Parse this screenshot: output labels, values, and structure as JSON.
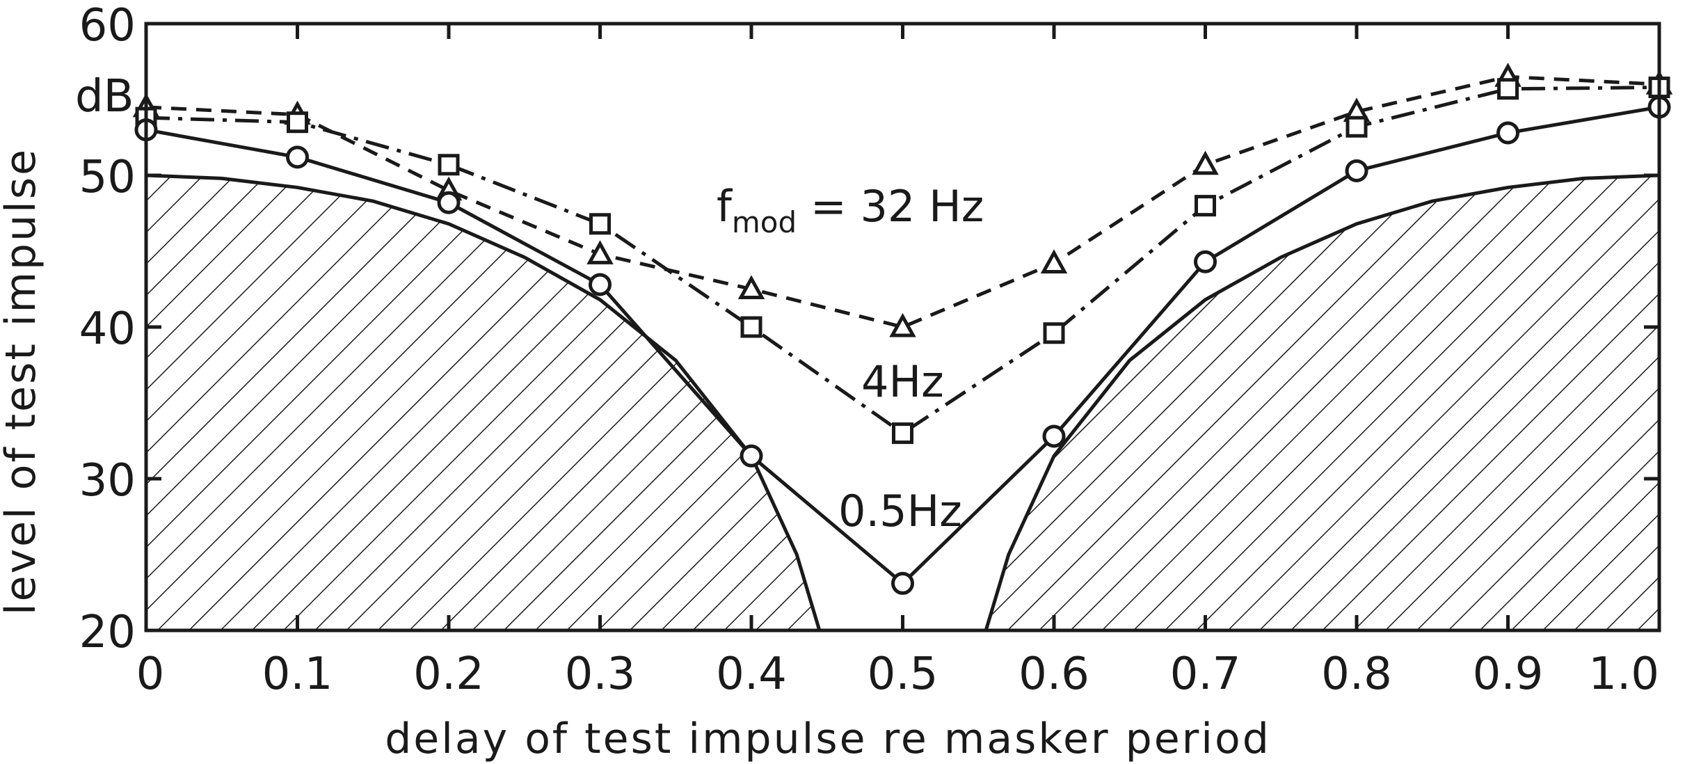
{
  "chart_data": {
    "type": "line",
    "title": "",
    "xlabel": "delay of test impulse re masker period",
    "ylabel": "level of test impulse",
    "y_unit": "dB",
    "xlim": [
      0,
      1.0
    ],
    "ylim": [
      20,
      60
    ],
    "x_ticks": [
      0,
      0.1,
      0.2,
      0.3,
      0.4,
      0.5,
      0.6,
      0.7,
      0.8,
      0.9,
      1.0
    ],
    "x_tick_labels": [
      "0",
      "0.1",
      "0.2",
      "0.3",
      "0.4",
      "0.5",
      "0.6",
      "0.7",
      "0.8",
      "0.9",
      "1.0"
    ],
    "y_ticks": [
      20,
      30,
      40,
      50,
      60
    ],
    "y_tick_labels": [
      "20",
      "30",
      "40",
      "50",
      "60"
    ],
    "grid": false,
    "legend": "none",
    "series_label_prefix": "f",
    "series_label_subscript": "mod",
    "series_label_suffix": " = 32 Hz",
    "series": [
      {
        "name": "32 Hz",
        "marker": "triangle",
        "line_style": "dashed",
        "x": [
          0,
          0.1,
          0.2,
          0.3,
          0.4,
          0.5,
          0.6,
          0.7,
          0.8,
          0.9,
          1.0
        ],
        "y": [
          54.5,
          54.0,
          49.0,
          44.8,
          42.5,
          40.0,
          44.2,
          50.7,
          54.2,
          56.5,
          56.0
        ]
      },
      {
        "name": "4Hz",
        "marker": "square",
        "line_style": "dashdot",
        "x": [
          0,
          0.1,
          0.2,
          0.3,
          0.4,
          0.5,
          0.6,
          0.7,
          0.8,
          0.9,
          1.0
        ],
        "y": [
          53.8,
          53.5,
          50.7,
          46.8,
          40.0,
          33.0,
          39.6,
          48.0,
          53.2,
          55.7,
          55.8
        ]
      },
      {
        "name": "0.5Hz",
        "marker": "circle",
        "line_style": "solid",
        "x": [
          0,
          0.1,
          0.2,
          0.3,
          0.4,
          0.5,
          0.6,
          0.7,
          0.8,
          0.9,
          1.0
        ],
        "y": [
          53.0,
          51.2,
          48.2,
          42.8,
          31.5,
          23.1,
          32.8,
          44.3,
          50.3,
          52.8,
          54.5
        ]
      }
    ],
    "shaded_region": {
      "description_free": true,
      "style": "hatched",
      "left_boundary": {
        "x": [
          0,
          0.05,
          0.1,
          0.15,
          0.2,
          0.25,
          0.3,
          0.35,
          0.4,
          0.43,
          0.445
        ],
        "y": [
          50.0,
          49.8,
          49.2,
          48.3,
          46.8,
          44.6,
          41.8,
          37.8,
          31.5,
          25.0,
          20.0
        ]
      },
      "right_boundary": {
        "x": [
          0.555,
          0.57,
          0.6,
          0.65,
          0.7,
          0.75,
          0.8,
          0.85,
          0.9,
          0.95,
          1.0
        ],
        "y": [
          20.0,
          25.0,
          31.5,
          37.8,
          41.8,
          44.6,
          46.8,
          48.3,
          49.2,
          49.8,
          50.0
        ]
      }
    },
    "annotations": [
      "4Hz",
      "0.5Hz"
    ]
  }
}
